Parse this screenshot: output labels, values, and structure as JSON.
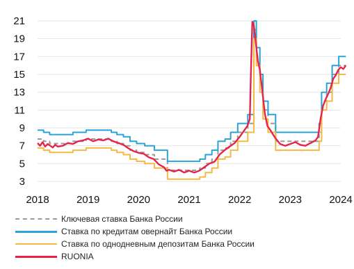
{
  "chart_data": {
    "type": "line",
    "title": "",
    "xlabel": "",
    "ylabel": "",
    "ylim": [
      3,
      21
    ],
    "xlim": [
      2018,
      2024
    ],
    "y_ticks": [
      "3",
      "5",
      "7",
      "9",
      "11",
      "13",
      "15",
      "17",
      "19",
      "21"
    ],
    "x_ticks": [
      "2018",
      "2019",
      "2020",
      "2021",
      "2022",
      "2023",
      "2024"
    ],
    "grid": "horizontal",
    "legend_position": "bottom",
    "series": [
      {
        "name": "Ключевая ставка Банка России",
        "color": "#999999",
        "style": "dashed",
        "x": [
          2018.0,
          2018.12,
          2018.24,
          2018.7,
          2018.96,
          2019.46,
          2019.57,
          2019.7,
          2019.83,
          2019.96,
          2020.12,
          2020.31,
          2020.57,
          2021.21,
          2021.32,
          2021.45,
          2021.57,
          2021.71,
          2021.82,
          2021.96,
          2022.16,
          2022.28,
          2022.33,
          2022.4,
          2022.46,
          2022.56,
          2022.71,
          2023.57,
          2023.62,
          2023.72,
          2023.83,
          2023.96,
          2024.1
        ],
        "y": [
          7.75,
          7.5,
          7.25,
          7.5,
          7.75,
          7.5,
          7.25,
          7.0,
          6.5,
          6.25,
          6.0,
          5.5,
          4.25,
          4.5,
          5.0,
          5.5,
          6.5,
          6.75,
          7.5,
          8.5,
          9.5,
          20.0,
          17.0,
          14.0,
          11.0,
          9.5,
          7.5,
          8.5,
          12.0,
          13.0,
          15.0,
          16.0,
          16.0
        ]
      },
      {
        "name": "Ставка по кредитам овернайт Банка России",
        "color": "#2aa3d6",
        "style": "solid",
        "x": [
          2018.0,
          2018.12,
          2018.24,
          2018.7,
          2018.96,
          2019.46,
          2019.57,
          2019.7,
          2019.83,
          2019.96,
          2020.12,
          2020.31,
          2020.57,
          2021.21,
          2021.32,
          2021.45,
          2021.57,
          2021.71,
          2021.82,
          2021.96,
          2022.16,
          2022.28,
          2022.33,
          2022.4,
          2022.46,
          2022.56,
          2022.71,
          2023.57,
          2023.62,
          2023.72,
          2023.83,
          2023.96,
          2024.1
        ],
        "y": [
          8.75,
          8.5,
          8.25,
          8.5,
          8.75,
          8.5,
          8.25,
          8.0,
          7.5,
          7.25,
          7.0,
          6.5,
          5.25,
          5.5,
          6.0,
          6.5,
          7.5,
          7.75,
          8.5,
          9.5,
          10.5,
          21.0,
          18.0,
          15.0,
          12.0,
          10.5,
          8.5,
          9.5,
          13.0,
          14.0,
          16.0,
          17.0,
          17.0
        ]
      },
      {
        "name": "Ставка по однодневным депозитам Банка России",
        "color": "#f5b942",
        "style": "solid",
        "x": [
          2018.0,
          2018.12,
          2018.24,
          2018.7,
          2018.96,
          2019.46,
          2019.57,
          2019.7,
          2019.83,
          2019.96,
          2020.12,
          2020.31,
          2020.57,
          2021.21,
          2021.32,
          2021.45,
          2021.57,
          2021.71,
          2021.82,
          2021.96,
          2022.16,
          2022.28,
          2022.33,
          2022.4,
          2022.46,
          2022.56,
          2022.71,
          2023.57,
          2023.62,
          2023.72,
          2023.83,
          2023.96,
          2024.1
        ],
        "y": [
          6.75,
          6.5,
          6.25,
          6.5,
          6.75,
          6.5,
          6.25,
          6.0,
          5.5,
          5.25,
          5.0,
          4.5,
          3.25,
          3.5,
          4.0,
          4.5,
          5.5,
          5.75,
          6.5,
          7.5,
          8.5,
          19.0,
          16.0,
          13.0,
          10.0,
          8.5,
          6.5,
          7.5,
          11.0,
          12.0,
          14.0,
          15.0,
          15.0
        ]
      },
      {
        "name": "RUONIA",
        "color": "#e8234a",
        "style": "solid",
        "x": [
          2018.0,
          2018.05,
          2018.1,
          2018.15,
          2018.2,
          2018.25,
          2018.3,
          2018.35,
          2018.4,
          2018.5,
          2018.6,
          2018.7,
          2018.8,
          2018.9,
          2019.0,
          2019.1,
          2019.2,
          2019.3,
          2019.4,
          2019.5,
          2019.6,
          2019.7,
          2019.8,
          2019.9,
          2020.0,
          2020.1,
          2020.2,
          2020.3,
          2020.4,
          2020.5,
          2020.55,
          2020.6,
          2020.7,
          2020.8,
          2020.9,
          2021.0,
          2021.1,
          2021.2,
          2021.3,
          2021.4,
          2021.5,
          2021.6,
          2021.7,
          2021.8,
          2021.9,
          2022.0,
          2022.1,
          2022.15,
          2022.2,
          2022.22,
          2022.25,
          2022.28,
          2022.3,
          2022.33,
          2022.36,
          2022.4,
          2022.43,
          2022.47,
          2022.5,
          2022.55,
          2022.6,
          2022.7,
          2022.8,
          2022.9,
          2023.0,
          2023.1,
          2023.2,
          2023.3,
          2023.4,
          2023.5,
          2023.55,
          2023.6,
          2023.65,
          2023.7,
          2023.75,
          2023.8,
          2023.85,
          2023.9,
          2023.95,
          2024.0,
          2024.05,
          2024.1
        ],
        "y": [
          7.3,
          7.0,
          7.4,
          6.9,
          7.2,
          7.0,
          6.8,
          7.1,
          6.9,
          7.0,
          7.3,
          7.2,
          7.5,
          7.6,
          7.8,
          7.5,
          7.7,
          7.6,
          7.8,
          7.5,
          7.3,
          7.1,
          6.7,
          6.4,
          6.2,
          6.1,
          5.7,
          5.5,
          4.9,
          4.6,
          4.2,
          4.3,
          4.1,
          4.3,
          4.0,
          4.2,
          4.0,
          4.2,
          4.6,
          5.0,
          5.2,
          6.0,
          6.5,
          6.9,
          7.3,
          8.0,
          8.8,
          9.2,
          10.0,
          15.0,
          20.9,
          20.5,
          19.5,
          18.0,
          16.5,
          15.5,
          14.0,
          12.0,
          10.5,
          9.2,
          8.8,
          7.9,
          7.2,
          7.0,
          7.2,
          7.4,
          7.1,
          7.0,
          7.3,
          7.6,
          8.0,
          10.0,
          11.5,
          12.2,
          12.8,
          13.5,
          14.5,
          14.9,
          15.5,
          15.8,
          15.6,
          16.0
        ]
      }
    ]
  }
}
